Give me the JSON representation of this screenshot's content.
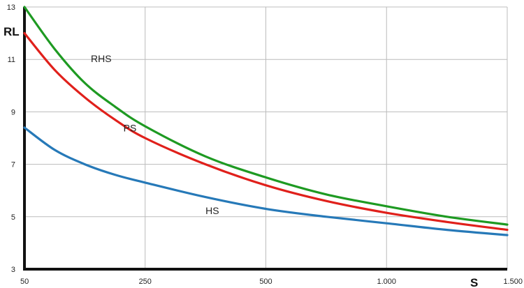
{
  "chart_data": {
    "type": "line",
    "xlabel": "S",
    "ylabel": "RL",
    "xlim": [
      0,
      4
    ],
    "ylim": [
      3,
      13
    ],
    "x_tick_positions": [
      0,
      1,
      2,
      3,
      4
    ],
    "x_ticks": [
      "50",
      "250",
      "500",
      "1.000",
      "1.500"
    ],
    "y_ticks": [
      3,
      5,
      7,
      9,
      11,
      13
    ],
    "grid": true,
    "legend": "none",
    "series": [
      {
        "name": "RHS",
        "color": "#1e9a22",
        "x": [
          0,
          0.25,
          0.5,
          0.75,
          1,
          1.5,
          2,
          2.5,
          3,
          3.5,
          4
        ],
        "y": [
          13.0,
          11.4,
          10.1,
          9.2,
          8.45,
          7.3,
          6.5,
          5.85,
          5.4,
          5.0,
          4.7
        ]
      },
      {
        "name": "PS",
        "color": "#e0201b",
        "x": [
          0,
          0.25,
          0.5,
          0.75,
          1,
          1.5,
          2,
          2.5,
          3,
          3.5,
          4
        ],
        "y": [
          12.0,
          10.6,
          9.55,
          8.7,
          8.0,
          7.0,
          6.2,
          5.6,
          5.15,
          4.8,
          4.5
        ]
      },
      {
        "name": "HS",
        "color": "#2679b8",
        "x": [
          0,
          0.25,
          0.5,
          0.75,
          1,
          1.5,
          2,
          2.5,
          3,
          3.5,
          4
        ],
        "y": [
          8.4,
          7.55,
          7.0,
          6.6,
          6.3,
          5.75,
          5.3,
          5.0,
          4.75,
          4.5,
          4.3
        ]
      }
    ]
  }
}
